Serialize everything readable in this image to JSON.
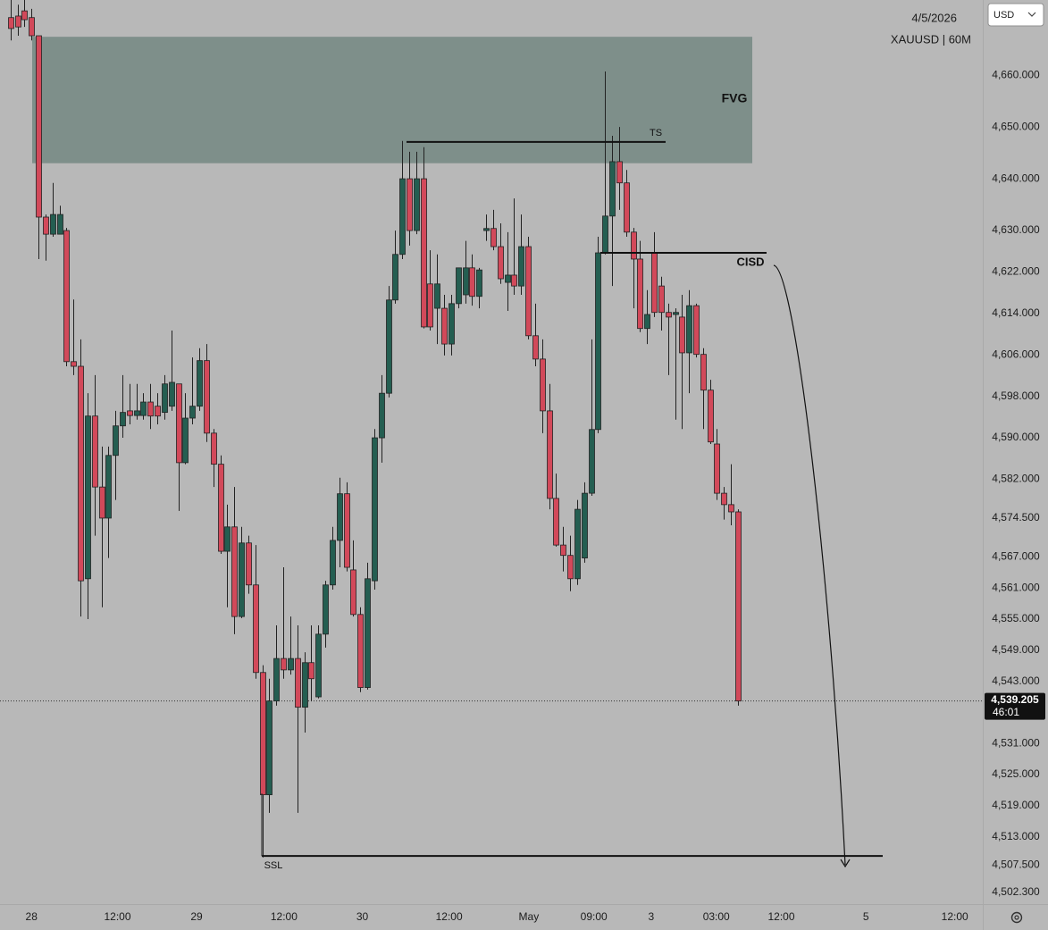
{
  "chart_data": {
    "type": "candlestick",
    "date": "4/5/2026",
    "symbol": "XAUUSD | 60M",
    "currency": "USD",
    "countdown": "46:01",
    "last_price": {
      "value": 4539.205,
      "label": "4,539.205"
    },
    "up_color": "#245e51",
    "down_color": "#d2495a",
    "grid": false,
    "ylim": [
      4500,
      4674.5
    ],
    "yticks": [
      {
        "value": 4660,
        "label": "4,660.000"
      },
      {
        "value": 4650,
        "label": "4,650.000"
      },
      {
        "value": 4640,
        "label": "4,640.000"
      },
      {
        "value": 4630,
        "label": "4,630.000"
      },
      {
        "value": 4622,
        "label": "4,622.000"
      },
      {
        "value": 4614,
        "label": "4,614.000"
      },
      {
        "value": 4606,
        "label": "4,606.000"
      },
      {
        "value": 4598,
        "label": "4,598.000"
      },
      {
        "value": 4590,
        "label": "4,590.000"
      },
      {
        "value": 4582,
        "label": "4,582.000"
      },
      {
        "value": 4574.5,
        "label": "4,574.500"
      },
      {
        "value": 4567,
        "label": "4,567.000"
      },
      {
        "value": 4561,
        "label": "4,561.000"
      },
      {
        "value": 4555,
        "label": "4,555.000"
      },
      {
        "value": 4549,
        "label": "4,549.000"
      },
      {
        "value": 4543,
        "label": "4,543.000"
      },
      {
        "value": 4531,
        "label": "4,531.000"
      },
      {
        "value": 4525,
        "label": "4,525.000"
      },
      {
        "value": 4519,
        "label": "4,519.000"
      },
      {
        "value": 4513,
        "label": "4,513.000"
      },
      {
        "value": 4507.5,
        "label": "4,507.500"
      },
      {
        "value": 4502.3,
        "label": "4,502.300"
      }
    ],
    "xlim": [
      -1.5,
      139
    ],
    "xticks": [
      {
        "value": 3,
        "label": "28"
      },
      {
        "value": 15.3,
        "label": "12:00"
      },
      {
        "value": 26.6,
        "label": "29"
      },
      {
        "value": 39.1,
        "label": "12:00"
      },
      {
        "value": 50.3,
        "label": "30"
      },
      {
        "value": 62.7,
        "label": "12:00"
      },
      {
        "value": 74.1,
        "label": "May"
      },
      {
        "value": 83.4,
        "label": "09:00"
      },
      {
        "value": 91.6,
        "label": "3"
      },
      {
        "value": 100.9,
        "label": "03:00"
      },
      {
        "value": 110.2,
        "label": "12:00"
      },
      {
        "value": 122.3,
        "label": "5"
      },
      {
        "value": 135,
        "label": "12:00"
      }
    ],
    "zones": [
      {
        "label": "FVG",
        "top": 4667.4,
        "bottom": 4643.0
      }
    ],
    "levels": [
      {
        "label": "TS",
        "value": 4647.1
      },
      {
        "label": "CISD",
        "value": 4625.7
      },
      {
        "label": "SSL",
        "value": 4509.3
      }
    ],
    "open": [
      4671.1,
      4671.4,
      4672.4,
      4671.1,
      4667.6,
      4632.6,
      4629.3,
      4629.3,
      4630.0,
      4604.7,
      4603.8,
      4562.8,
      4594.2,
      4580.5,
      4574.5,
      4586.6,
      4592.3,
      4595.2,
      4594.3,
      4594.3,
      4596.9,
      4596.1,
      4594.9,
      4596.1,
      4600.4,
      4585.2,
      4593.8,
      4596.1,
      4604.9,
      4590.9,
      4584.9,
      4568.1,
      4572.8,
      4555.5,
      4569.7,
      4561.6,
      4544.7,
      4521.1,
      4539.2,
      4547.4,
      4545.2,
      4547.4,
      4538.0,
      4546.6,
      4540.0,
      4552.1,
      4561.6,
      4570.2,
      4579.2,
      4564.5,
      4555.9,
      4541.8,
      4562.4,
      4590.0,
      4598.6,
      4616.6,
      4625.4,
      4640.0,
      4630.0,
      4640.0,
      4619.7,
      4615.0,
      4615.0,
      4608.1,
      4615.9,
      4617.6,
      4622.8,
      4617.3,
      4630.0,
      4630.4,
      4626.9,
      4620.0,
      4621.4,
      4619.3,
      4626.9,
      4609.7,
      4605.2,
      4595.2,
      4578.3,
      4569.3,
      4567.3,
      4562.8,
      4566.8,
      4579.3,
      4591.6,
      4625.7,
      4632.8,
      4643.3,
      4639.2,
      4629.7,
      4624.5,
      4611.1,
      4625.7,
      4619.3,
      4614.2,
      4613.8,
      4613.3,
      4606.4,
      4615.5,
      4606.1,
      4599.2,
      4588.8,
      4579.3,
      4577.1,
      4575.7
    ],
    "high": [
      4674.5,
      4673.6,
      4674.5,
      4672.8,
      4667.6,
      4633.1,
      4639.2,
      4634.8,
      4630.5,
      4616.7,
      4609.0,
      4598.6,
      4602.1,
      4588.3,
      4588.3,
      4595.2,
      4602.1,
      4600.4,
      4600.4,
      4598.6,
      4600.4,
      4598.6,
      4602.1,
      4610.7,
      4600.4,
      4598.6,
      4605.5,
      4607.3,
      4608.1,
      4591.7,
      4586.6,
      4577.1,
      4580.5,
      4572.8,
      4571.1,
      4569.3,
      4546.1,
      4543.5,
      4553.8,
      4565.0,
      4555.5,
      4553.8,
      4548.6,
      4553.8,
      4553.8,
      4562.4,
      4572.8,
      4582.3,
      4581.4,
      4570.2,
      4557.3,
      4565.9,
      4591.7,
      4602.1,
      4619.3,
      4630.0,
      4647.3,
      4645.2,
      4645.2,
      4646.1,
      4626.2,
      4625.4,
      4617.6,
      4617.6,
      4622.8,
      4628.0,
      4625.4,
      4622.8,
      4633.1,
      4634.0,
      4631.4,
      4629.7,
      4636.2,
      4633.1,
      4628.8,
      4615.9,
      4609.0,
      4600.4,
      4583.1,
      4572.8,
      4571.1,
      4578.0,
      4581.4,
      4609.0,
      4628.8,
      4660.7,
      4648.3,
      4650.0,
      4641.7,
      4630.5,
      4628.0,
      4618.5,
      4629.7,
      4621.1,
      4615.9,
      4615.0,
      4617.6,
      4618.5,
      4615.9,
      4607.3,
      4601.2,
      4591.7,
      4580.5,
      4584.9,
      4576.2
    ],
    "low": [
      4666.7,
      4667.6,
      4669.3,
      4666.7,
      4624.5,
      4624.2,
      4628.8,
      4629.3,
      4603.8,
      4602.1,
      4555.5,
      4555.0,
      4571.1,
      4557.3,
      4566.8,
      4578.0,
      4590.0,
      4592.6,
      4593.5,
      4593.5,
      4591.7,
      4592.6,
      4593.5,
      4595.2,
      4575.9,
      4584.9,
      4592.6,
      4595.2,
      4589.2,
      4580.5,
      4567.6,
      4557.3,
      4552.1,
      4555.2,
      4559.9,
      4543.5,
      4509.0,
      4517.6,
      4538.3,
      4543.5,
      4544.3,
      4517.6,
      4533.1,
      4539.2,
      4539.7,
      4549.5,
      4560.7,
      4565.0,
      4564.2,
      4555.5,
      4540.9,
      4541.4,
      4560.7,
      4585.2,
      4597.8,
      4615.9,
      4624.5,
      4627.1,
      4629.3,
      4611.1,
      4610.7,
      4608.1,
      4605.9,
      4605.9,
      4615.0,
      4615.9,
      4615.5,
      4615.0,
      4628.0,
      4626.2,
      4619.7,
      4614.5,
      4617.6,
      4617.6,
      4609.0,
      4603.8,
      4590.9,
      4576.2,
      4569.0,
      4564.2,
      4560.4,
      4561.6,
      4565.9,
      4578.8,
      4590.9,
      4625.4,
      4619.3,
      4634.0,
      4628.8,
      4615.0,
      4610.4,
      4608.1,
      4613.3,
      4610.7,
      4602.1,
      4593.5,
      4591.7,
      4598.6,
      4605.5,
      4591.7,
      4588.8,
      4578.0,
      4574.2,
      4573.1,
      4538.3
    ],
    "close": [
      4669.0,
      4669.3,
      4670.7,
      4667.6,
      4632.6,
      4629.3,
      4633.1,
      4633.1,
      4604.7,
      4603.8,
      4562.4,
      4594.2,
      4580.5,
      4574.5,
      4586.6,
      4592.3,
      4594.9,
      4594.3,
      4595.2,
      4596.9,
      4594.2,
      4594.2,
      4600.4,
      4600.7,
      4585.2,
      4593.8,
      4596.1,
      4604.9,
      4590.9,
      4584.9,
      4568.1,
      4572.8,
      4555.5,
      4569.7,
      4561.6,
      4544.7,
      4521.1,
      4539.2,
      4547.4,
      4545.2,
      4547.4,
      4538.0,
      4546.6,
      4543.5,
      4552.1,
      4561.6,
      4570.2,
      4579.2,
      4565.0,
      4555.9,
      4541.8,
      4562.8,
      4590.0,
      4598.6,
      4616.6,
      4625.4,
      4640.0,
      4630.0,
      4640.0,
      4611.4,
      4611.4,
      4619.7,
      4608.1,
      4615.9,
      4622.8,
      4622.8,
      4617.3,
      4622.4,
      4630.4,
      4626.9,
      4620.7,
      4621.4,
      4619.3,
      4626.9,
      4609.7,
      4605.2,
      4595.2,
      4578.3,
      4569.3,
      4567.3,
      4562.8,
      4576.2,
      4579.3,
      4591.6,
      4625.7,
      4632.8,
      4643.3,
      4639.2,
      4629.7,
      4624.5,
      4611.1,
      4613.8,
      4614.2,
      4614.2,
      4613.3,
      4614.2,
      4606.4,
      4615.5,
      4606.1,
      4599.2,
      4589.2,
      4579.3,
      4577.1,
      4575.7,
      4539.205
    ]
  }
}
